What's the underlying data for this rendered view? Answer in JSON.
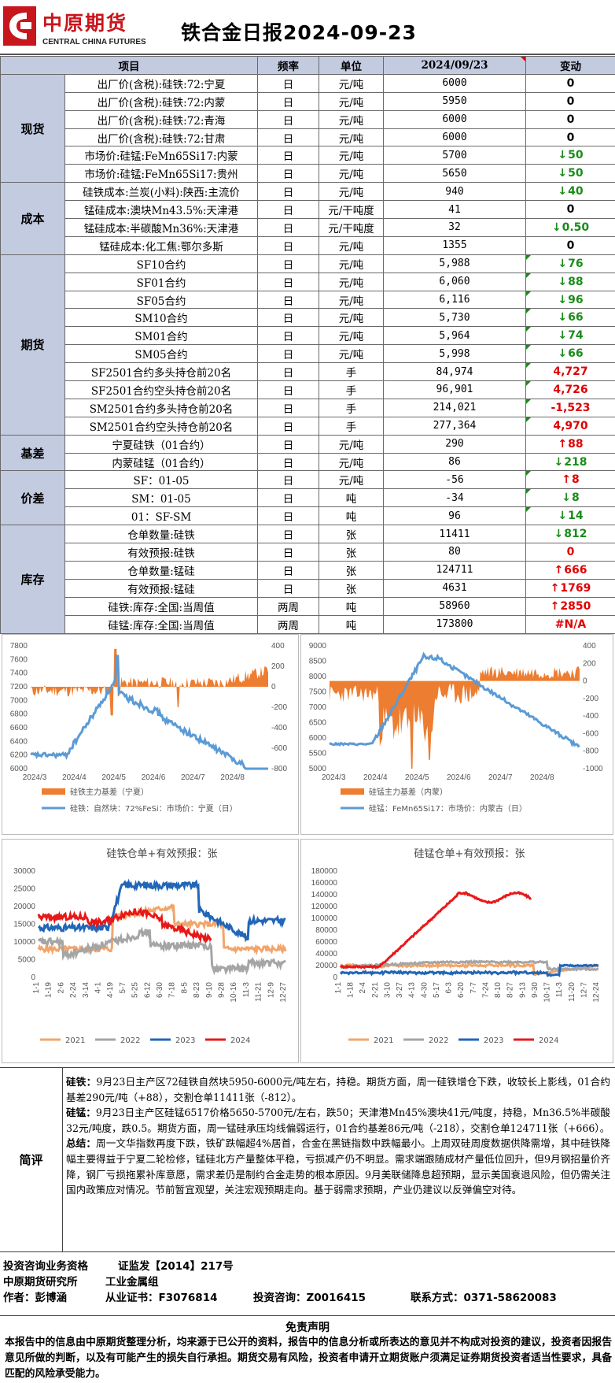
{
  "header": {
    "logo_cn": "中原期货",
    "logo_en": "CENTRAL CHINA FUTURES",
    "title": "铁合金日报2024-09-23"
  },
  "table": {
    "headers": [
      "项目",
      "频率",
      "单位",
      "2024/09/23",
      "变动"
    ],
    "groups": [
      {
        "name": "现货",
        "rows": [
          {
            "item": "出厂价(含税):硅铁:72:宁夏",
            "freq": "日",
            "unit": "元/吨",
            "value": "6000",
            "change": "0",
            "dir": "zero",
            "flag": false
          },
          {
            "item": "出厂价(含税):硅铁:72:内蒙",
            "freq": "日",
            "unit": "元/吨",
            "value": "5950",
            "change": "0",
            "dir": "zero",
            "flag": false
          },
          {
            "item": "出厂价(含税):硅铁:72:青海",
            "freq": "日",
            "unit": "元/吨",
            "value": "6000",
            "change": "0",
            "dir": "zero",
            "flag": false
          },
          {
            "item": "出厂价(含税):硅铁:72:甘肃",
            "freq": "日",
            "unit": "元/吨",
            "value": "6000",
            "change": "0",
            "dir": "zero",
            "flag": false
          },
          {
            "item": "市场价:硅锰:FeMn65Si17:内蒙",
            "freq": "日",
            "unit": "元/吨",
            "value": "5700",
            "change": "50",
            "dir": "dn",
            "flag": false
          },
          {
            "item": "市场价:硅锰:FeMn65Si17:贵州",
            "freq": "日",
            "unit": "元/吨",
            "value": "5650",
            "change": "50",
            "dir": "dn",
            "flag": false
          }
        ]
      },
      {
        "name": "成本",
        "rows": [
          {
            "item": "硅铁成本:兰炭(小料):陕西:主流价",
            "freq": "日",
            "unit": "元/吨",
            "value": "940",
            "change": "40",
            "dir": "dn",
            "flag": false
          },
          {
            "item": "锰硅成本:澳块Mn43.5%:天津港",
            "freq": "日",
            "unit": "元/干吨度",
            "value": "41",
            "change": "0",
            "dir": "zero",
            "flag": false
          },
          {
            "item": "锰硅成本:半碳酸Mn36%:天津港",
            "freq": "日",
            "unit": "元/干吨度",
            "value": "32",
            "change": "0.50",
            "dir": "dn",
            "flag": false
          },
          {
            "item": "锰硅成本:化工焦:鄂尔多斯",
            "freq": "日",
            "unit": "元/吨",
            "value": "1355",
            "change": "0",
            "dir": "zero",
            "flag": false
          }
        ]
      },
      {
        "name": "期货",
        "rows": [
          {
            "item": "SF10合约",
            "freq": "日",
            "unit": "元/吨",
            "value": "5,988",
            "change": "76",
            "dir": "dn",
            "flag": true
          },
          {
            "item": "SF01合约",
            "freq": "日",
            "unit": "元/吨",
            "value": "6,060",
            "change": "88",
            "dir": "dn",
            "flag": true
          },
          {
            "item": "SF05合约",
            "freq": "日",
            "unit": "元/吨",
            "value": "6,116",
            "change": "96",
            "dir": "dn",
            "flag": true
          },
          {
            "item": "SM10合约",
            "freq": "日",
            "unit": "元/吨",
            "value": "5,730",
            "change": "66",
            "dir": "dn",
            "flag": true
          },
          {
            "item": "SM01合约",
            "freq": "日",
            "unit": "元/吨",
            "value": "5,964",
            "change": "74",
            "dir": "dn",
            "flag": true
          },
          {
            "item": "SM05合约",
            "freq": "日",
            "unit": "元/吨",
            "value": "5,998",
            "change": "66",
            "dir": "dn",
            "flag": true
          },
          {
            "item": "SF2501合约多头持仓前20名",
            "freq": "日",
            "unit": "手",
            "value": "84,974",
            "change": "4,727",
            "dir": "neg",
            "flag": true
          },
          {
            "item": "SF2501合约空头持仓前20名",
            "freq": "日",
            "unit": "手",
            "value": "96,901",
            "change": "4,726",
            "dir": "neg",
            "flag": true
          },
          {
            "item": "SM2501合约多头持仓前20名",
            "freq": "日",
            "unit": "手",
            "value": "214,021",
            "change": "-1,523",
            "dir": "neg",
            "flag": true
          },
          {
            "item": "SM2501合约空头持仓前20名",
            "freq": "日",
            "unit": "手",
            "value": "277,364",
            "change": "4,970",
            "dir": "neg",
            "flag": true
          }
        ]
      },
      {
        "name": "基差",
        "rows": [
          {
            "item": "宁夏硅铁（01合约）",
            "freq": "日",
            "unit": "元/吨",
            "value": "290",
            "change": "88",
            "dir": "up",
            "flag": false
          },
          {
            "item": "内蒙硅锰（01合约）",
            "freq": "日",
            "unit": "元/吨",
            "value": "86",
            "change": "218",
            "dir": "dn",
            "flag": false
          }
        ]
      },
      {
        "name": "价差",
        "rows": [
          {
            "item": "SF：01-05",
            "freq": "日",
            "unit": "元/吨",
            "value": "-56",
            "change": "8",
            "dir": "up",
            "flag": true
          },
          {
            "item": "SM：01-05",
            "freq": "日",
            "unit": "吨",
            "value": "-34",
            "change": "8",
            "dir": "dn",
            "flag": true
          },
          {
            "item": "01：SF-SM",
            "freq": "日",
            "unit": "吨",
            "value": "96",
            "change": "14",
            "dir": "dn",
            "flag": true
          }
        ]
      },
      {
        "name": "库存",
        "rows": [
          {
            "item": "仓单数量:硅铁",
            "freq": "日",
            "unit": "张",
            "value": "11411",
            "change": "812",
            "dir": "dn",
            "flag": false
          },
          {
            "item": "有效预报:硅铁",
            "freq": "日",
            "unit": "张",
            "value": "80",
            "change": "0",
            "dir": "neg",
            "flag": false
          },
          {
            "item": "仓单数量:锰硅",
            "freq": "日",
            "unit": "张",
            "value": "124711",
            "change": "666",
            "dir": "up",
            "flag": false
          },
          {
            "item": "有效预报:锰硅",
            "freq": "日",
            "unit": "张",
            "value": "4631",
            "change": "1769",
            "dir": "up",
            "flag": false
          },
          {
            "item": "硅铁:库存:全国:当周值",
            "freq": "两周",
            "unit": "吨",
            "value": "58960",
            "change": "2850",
            "dir": "up",
            "flag": false
          },
          {
            "item": "硅锰:库存:全国:当周值",
            "freq": "两周",
            "unit": "吨",
            "value": "173800",
            "change": "#N/A",
            "dir": "neg",
            "flag": false
          }
        ]
      }
    ]
  },
  "chart_data": [
    {
      "type": "line",
      "name": "chart1",
      "x_ticks": [
        "2024/3",
        "2024/4",
        "2024/5",
        "2024/6",
        "2024/7",
        "2024/8"
      ],
      "y_left": [
        6000,
        6200,
        6400,
        6600,
        6800,
        7000,
        7200,
        7400,
        7600,
        7800
      ],
      "y_right": [
        -800,
        -600,
        -400,
        -200,
        0,
        200,
        400
      ],
      "legend": [
        "硅铁主力基差（宁夏）",
        "硅铁：自然块：72%FeSi：市场价：宁夏（日）"
      ]
    },
    {
      "type": "line",
      "name": "chart2",
      "x_ticks": [
        "2024/3",
        "2024/4",
        "2024/5",
        "2024/6",
        "2024/7",
        "2024/8"
      ],
      "y_left": [
        5000,
        5500,
        6000,
        6500,
        7000,
        7500,
        8000,
        8500,
        9000
      ],
      "y_right": [
        -1000,
        -800,
        -600,
        -400,
        -200,
        0,
        200,
        400
      ],
      "legend": [
        "硅锰主力基差（内蒙）",
        "硅锰：FeMn65Si17：市场价：内蒙古（日）"
      ]
    },
    {
      "type": "line",
      "name": "chart3",
      "title": "硅铁仓单+有效预报：张",
      "y": [
        0,
        5000,
        10000,
        15000,
        20000,
        25000,
        30000
      ],
      "x_ticks": [
        "1-1",
        "1-19",
        "2-6",
        "2-24",
        "3-14",
        "4-1",
        "4-19",
        "5-7",
        "5-25",
        "6-12",
        "6-30",
        "7-18",
        "8-5",
        "8-23",
        "9-10",
        "9-28",
        "10-16",
        "11-3",
        "11-21",
        "12-9",
        "12-27"
      ],
      "legend": [
        "2021",
        "2022",
        "2023",
        "2024"
      ]
    },
    {
      "type": "line",
      "name": "chart4",
      "title": "硅锰仓单+有效预报：张",
      "y": [
        0,
        20000,
        40000,
        60000,
        80000,
        100000,
        120000,
        140000,
        160000,
        180000
      ],
      "x_ticks": [
        "1-1",
        "1-18",
        "2-4",
        "2-21",
        "3-10",
        "3-27",
        "4-13",
        "4-30",
        "5-17",
        "6-3",
        "6-20",
        "7-7",
        "7-24",
        "8-10",
        "8-27",
        "9-13",
        "9-30",
        "10-17",
        "11-3",
        "11-20",
        "12-7",
        "12-24"
      ],
      "legend": [
        "2021",
        "2022",
        "2023",
        "2024"
      ]
    }
  ],
  "legend_colors": {
    "2021": "#f2a56b",
    "2022": "#a5a5a5",
    "2023": "#2266b8",
    "2024": "#e81818",
    "basis": "#ed7d31",
    "price": "#5b9bd5"
  },
  "commentary": {
    "label": "简评",
    "p1_head": "硅铁：",
    "p1": "9月23日主产区72硅铁自然块5950-6000元/吨左右，持稳。期货方面，周一硅铁增仓下跌，收较长上影线，01合约基差290元/吨（+88），交割仓单11411张（-812）。",
    "p2_head": "硅锰：",
    "p2": "9月23日主产区硅锰6517价格5650-5700元/左右，跌50；天津港Mn45%澳块41元/吨度，持稳，Mn36.5%半碳酸32元/吨度，跌0.5。期货方面，周一锰硅承压均线偏弱运行，01合约基差86元/吨（-218），交割仓单124711张（+666）。",
    "p3_head": "总结：",
    "p3": "周一文华指数再度下跌，铁矿跌幅超4%居首，合金在黑链指数中跌幅最小。上周双硅周度数据供降需增，其中硅铁降幅主要得益于宁夏二轮检修，锰硅北方产量整体平稳，亏损减产仍不明显。需求端跟随成材产量低位回升，但9月钢招量价齐降，钢厂亏损拖累补库意愿，需求差仍是制约合金走势的根本原因。9月美联储降息超预期，显示美国衰退风险，但仍需关注国内政策应对情况。节前暂宜观望，关注宏观预期走向。基于弱需求预期，产业仍建议以反弹偏空对待。"
  },
  "footer": {
    "qual": "投资咨询业务资格",
    "cert": "证监发【2014】217号",
    "org": "中原期货研究所",
    "group": "工业金属组",
    "author": "作者：彭博涵",
    "license": "从业证书：F3076814",
    "consult": "投资咨询：Z0016415",
    "phone": "联系方式：0371-58620083"
  },
  "disclaimer": {
    "title": "免责声明",
    "text": "本报告中的信息由中原期货整理分析，均来源于已公开的资料，报告中的信息分析或所表达的意见并不构成对投资的建议，投资者因报告意见所做的判断，以及有可能产生的损失自行承担。期货交易有风险，投资者申请开立期货账户须满足证券期货投资者适当性要求，具备匹配的风险承受能力。"
  }
}
